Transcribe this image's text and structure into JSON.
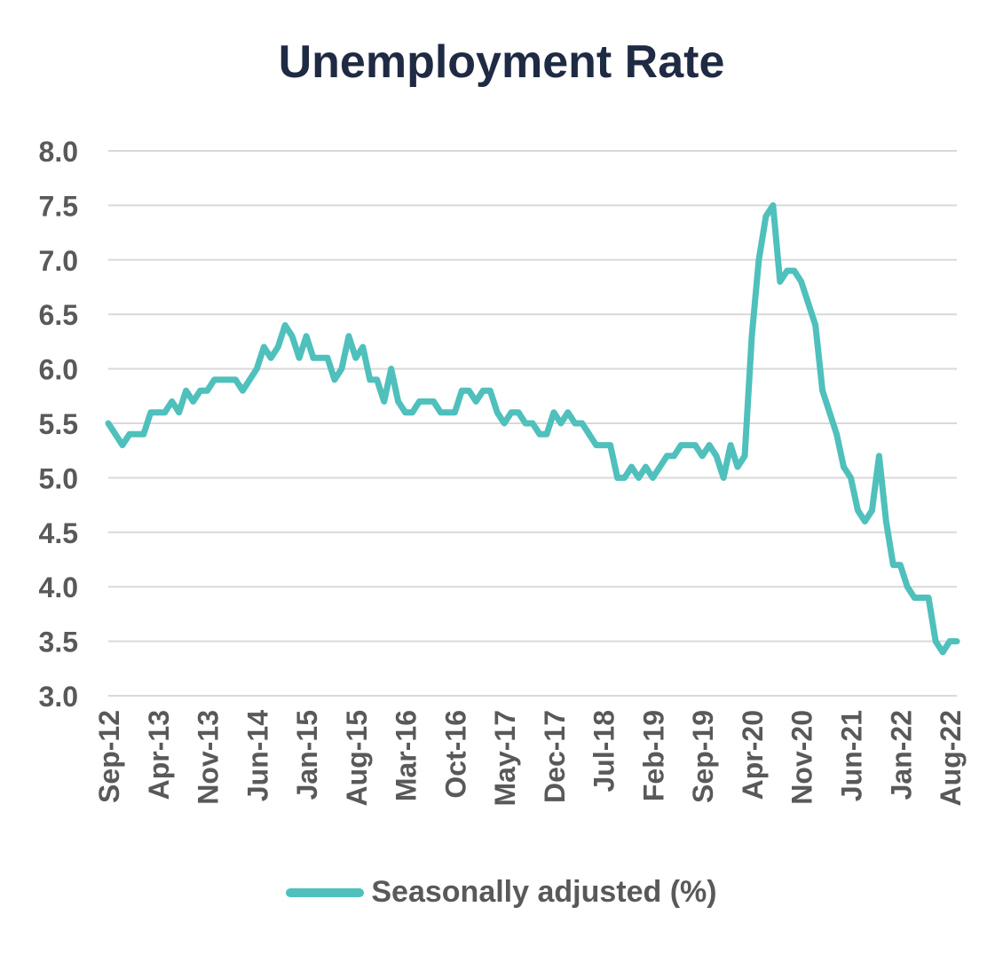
{
  "chart_data": {
    "type": "line",
    "title": "Unemployment Rate",
    "xlabel": "",
    "ylabel": "",
    "ylim": [
      3.0,
      8.0
    ],
    "y_ticks": [
      "8.0",
      "7.5",
      "7.0",
      "6.5",
      "6.0",
      "5.5",
      "5.0",
      "4.5",
      "4.0",
      "3.5",
      "3.0"
    ],
    "x_tick_labels": [
      "Sep-12",
      "Apr-13",
      "Nov-13",
      "Jun-14",
      "Jan-15",
      "Aug-15",
      "Mar-16",
      "Oct-16",
      "May-17",
      "Dec-17",
      "Jul-18",
      "Feb-19",
      "Sep-19",
      "Apr-20",
      "Nov-20",
      "Jun-21",
      "Jan-22",
      "Aug-22"
    ],
    "grid": true,
    "legend_position": "bottom",
    "series": [
      {
        "name": "Seasonally adjusted (%)",
        "color": "#4fc0bc",
        "start": "Sep-12",
        "frequency": "monthly",
        "values": [
          5.5,
          5.4,
          5.3,
          5.4,
          5.4,
          5.4,
          5.6,
          5.6,
          5.6,
          5.7,
          5.6,
          5.8,
          5.7,
          5.8,
          5.8,
          5.9,
          5.9,
          5.9,
          5.9,
          5.8,
          5.9,
          6.0,
          6.2,
          6.1,
          6.2,
          6.4,
          6.3,
          6.1,
          6.3,
          6.1,
          6.1,
          6.1,
          5.9,
          6.0,
          6.3,
          6.1,
          6.2,
          5.9,
          5.9,
          5.7,
          6.0,
          5.7,
          5.6,
          5.6,
          5.7,
          5.7,
          5.7,
          5.6,
          5.6,
          5.6,
          5.8,
          5.8,
          5.7,
          5.8,
          5.8,
          5.6,
          5.5,
          5.6,
          5.6,
          5.5,
          5.5,
          5.4,
          5.4,
          5.6,
          5.5,
          5.6,
          5.5,
          5.5,
          5.4,
          5.3,
          5.3,
          5.3,
          5.0,
          5.0,
          5.1,
          5.0,
          5.1,
          5.0,
          5.1,
          5.2,
          5.2,
          5.3,
          5.3,
          5.3,
          5.2,
          5.3,
          5.2,
          5.0,
          5.3,
          5.1,
          5.2,
          6.3,
          7.0,
          7.4,
          7.5,
          6.8,
          6.9,
          6.9,
          6.8,
          6.6,
          6.4,
          5.8,
          5.6,
          5.4,
          5.1,
          5.0,
          4.7,
          4.6,
          4.7,
          5.2,
          4.6,
          4.2,
          4.2,
          4.0,
          3.9,
          3.9,
          3.9,
          3.5,
          3.4,
          3.5,
          3.5
        ]
      }
    ]
  }
}
